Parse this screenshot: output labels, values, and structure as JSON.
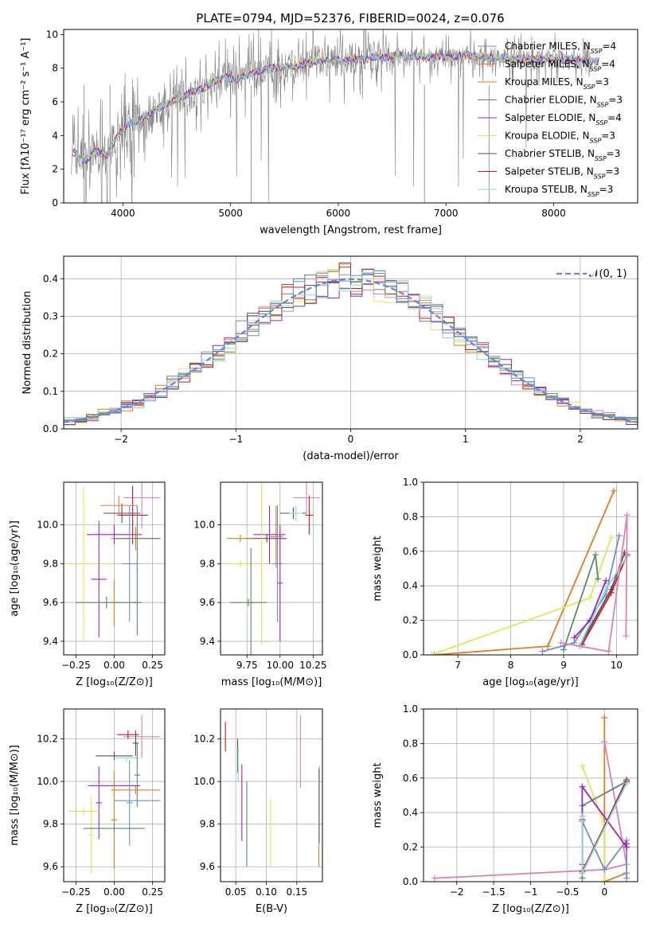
{
  "figure": {
    "title": "PLATE=0794, MJD=52376, FIBERID=0024, z=0.076"
  },
  "colors": {
    "Chabrier MILES": "#6b8fd6",
    "Salpeter MILES": "#e8784a",
    "Kroupa MILES": "#e07b1e",
    "Chabrier ELODIE": "#5a8a6a",
    "Salpeter ELODIE": "#a020c0",
    "Kroupa ELODIE": "#d8ea5a",
    "Chabrier STELIB": "#505050",
    "Salpeter STELIB": "#d01818",
    "Kroupa STELIB": "#80d8e0",
    "pink": "#e080b0",
    "data": "#808080",
    "normal": "#5b8ad6"
  },
  "chart_data": [
    {
      "id": "spectrum",
      "type": "line",
      "xlabel": "wavelength [Angstrom, rest frame]",
      "ylabel": "Flux [f_λ10^-17 erg cm^-2 s^-1 A^-1]",
      "xlim": [
        3450,
        8780
      ],
      "ylim": [
        0,
        10.3
      ],
      "xticks": [
        4000,
        5000,
        6000,
        7000,
        8000
      ],
      "yticks": [
        0,
        2,
        4,
        6,
        8,
        10
      ],
      "legend_position": "right",
      "legend": [
        {
          "label": "Chabrier MILES, N_SSP=4",
          "color": "#6b8fd6"
        },
        {
          "label": "Salpeter MILES, N_SSP=4",
          "color": "#e8784a"
        },
        {
          "label": "Kroupa MILES, N_SSP=3",
          "color": "#e07b1e"
        },
        {
          "label": "Chabrier ELODIE, N_SSP=3",
          "color": "#5a8a6a"
        },
        {
          "label": "Salpeter ELODIE, N_SSP=4",
          "color": "#a020c0"
        },
        {
          "label": "Kroupa ELODIE, N_SSP=3",
          "color": "#d8ea5a"
        },
        {
          "label": "Chabrier STELIB, N_SSP=3",
          "color": "#505050"
        },
        {
          "label": "Salpeter STELIB, N_SSP=3",
          "color": "#d01818"
        },
        {
          "label": "Kroupa STELIB, N_SSP=3",
          "color": "#80d8e0"
        }
      ],
      "model_x": [
        3550,
        3650,
        3750,
        3850,
        3950,
        4050,
        4150,
        4250,
        4350,
        4450,
        4550,
        4650,
        4750,
        4850,
        4950,
        5050,
        5150,
        5250,
        5350,
        5450,
        5550,
        5650,
        5750,
        5850,
        5950,
        6050,
        6150,
        6250,
        6350,
        6450,
        6550,
        6650,
        6750,
        6850,
        6950,
        7050,
        7150,
        7250,
        7350,
        7450,
        7550,
        7650,
        7750,
        7850,
        7950,
        8050,
        8150,
        8250,
        8350,
        8450
      ],
      "model_y": [
        3.0,
        2.5,
        3.1,
        2.8,
        4.0,
        4.7,
        4.9,
        5.3,
        5.7,
        6.0,
        6.3,
        6.6,
        6.8,
        7.2,
        7.5,
        7.3,
        7.6,
        7.8,
        8.0,
        8.0,
        8.1,
        8.2,
        8.3,
        8.5,
        8.5,
        8.4,
        8.6,
        8.5,
        8.7,
        8.6,
        8.8,
        8.6,
        8.7,
        8.6,
        8.7,
        8.6,
        8.8,
        8.7,
        8.7,
        8.6,
        8.6,
        8.5,
        8.6,
        8.5,
        8.6,
        8.5,
        8.5,
        8.5,
        8.4,
        8.4
      ]
    },
    {
      "id": "residuals",
      "type": "line",
      "xlabel": "(data-model)/error",
      "ylabel": "Normed distribution",
      "xlim": [
        -2.5,
        2.5
      ],
      "ylim": [
        0,
        0.46
      ],
      "xticks": [
        -2,
        -1,
        0,
        1,
        2
      ],
      "yticks": [
        0.0,
        0.1,
        0.2,
        0.3,
        0.4
      ],
      "legend_position": "upper right",
      "legend": [
        {
          "label": "𝒩(0, 1)"
        }
      ],
      "curve": "normal pdf, mean 0, sigma 1"
    },
    {
      "id": "age-vs-Z",
      "type": "scatter",
      "xlabel": "Z [log10(Z/Z⊙)]",
      "ylabel": "age  [log10(age/yr)]",
      "xlim": [
        -0.33,
        0.33
      ],
      "ylim": [
        9.33,
        10.22
      ],
      "xticks": [
        -0.25,
        0.0,
        0.25
      ],
      "ytick_values": [
        9.4,
        9.6,
        9.8,
        10.0
      ],
      "xtick_labels": [
        "−0.25",
        "0.00",
        "0.25"
      ],
      "ytick_labels": [
        "9.4",
        "9.6",
        "9.8",
        "10.0"
      ],
      "points": [
        {
          "x": 0.18,
          "y": 10.14,
          "xerr": 0.12,
          "yerr": 0.16,
          "color": "#e080b0"
        },
        {
          "x": 0.12,
          "y": 10.05,
          "xerr": 0.1,
          "yerr": 0.15,
          "color": "#d01818"
        },
        {
          "x": 0.05,
          "y": 10.06,
          "xerr": 0.12,
          "yerr": 0.05,
          "color": "#505050"
        },
        {
          "x": 0.14,
          "y": 9.93,
          "xerr": 0.16,
          "yerr": 0.06,
          "color": "#e07b1e"
        },
        {
          "x": 0.0,
          "y": 9.95,
          "xerr": 0.18,
          "yerr": 0.05,
          "color": "#a020c0"
        },
        {
          "x": 0.15,
          "y": 9.93,
          "xerr": 0.15,
          "yerr": 0.17,
          "color": "#5a8a6a"
        },
        {
          "x": 0.1,
          "y": 9.8,
          "xerr": 0.05,
          "yerr": 0.3,
          "color": "#6b8fd6"
        },
        {
          "x": 0.03,
          "y": 10.1,
          "xerr": 0.12,
          "yerr": 0.05,
          "color": "#e8784a"
        },
        {
          "x": -0.2,
          "y": 9.8,
          "xerr": 0.2,
          "yerr": 0.4,
          "color": "#d8ea5a"
        },
        {
          "x": -0.1,
          "y": 9.72,
          "xerr": 0.05,
          "yerr": 0.3,
          "color": "#a020c0"
        },
        {
          "x": 0.0,
          "y": 9.6,
          "xerr": 0.03,
          "yerr": 0.12,
          "color": "#e07b1e"
        },
        {
          "x": 0.15,
          "y": 9.6,
          "xerr": 0.03,
          "yerr": 0.17,
          "color": "#5a8a6a"
        },
        {
          "x": -0.05,
          "y": 9.6,
          "xerr": 0.2,
          "yerr": 0.03,
          "color": "#5a8a6a"
        }
      ]
    },
    {
      "id": "age-vs-mass",
      "type": "scatter",
      "xlabel": "mass [log10(M/M⊙)]",
      "xlim": [
        9.55,
        10.32
      ],
      "ylim": [
        9.33,
        10.22
      ],
      "xticks": [
        9.75,
        10.0,
        10.25
      ],
      "ytick_values": [
        9.4,
        9.6,
        9.8,
        10.0
      ],
      "xtick_labels": [
        "9.75",
        "10.00",
        "10.25"
      ],
      "ytick_labels": [
        "9.4",
        "9.6",
        "9.8",
        "10.0"
      ],
      "points": [
        {
          "x": 10.2,
          "y": 10.14,
          "xerr": 0.1,
          "yerr": 0.08,
          "color": "#e080b0"
        },
        {
          "x": 10.22,
          "y": 10.05,
          "xerr": 0.03,
          "yerr": 0.1,
          "color": "#d01818"
        },
        {
          "x": 10.1,
          "y": 10.06,
          "xerr": 0.1,
          "yerr": 0.03,
          "color": "#505050"
        },
        {
          "x": 10.12,
          "y": 10.06,
          "xerr": 0.05,
          "yerr": 0.04,
          "color": "#80d8e0"
        },
        {
          "x": 9.97,
          "y": 9.94,
          "xerr": 0.05,
          "yerr": 0.16,
          "color": "#e07b1e"
        },
        {
          "x": 9.9,
          "y": 9.93,
          "xerr": 0.15,
          "yerr": 0.02,
          "color": "#505050"
        },
        {
          "x": 9.92,
          "y": 9.95,
          "xerr": 0.12,
          "yerr": 0.15,
          "color": "#a020c0"
        },
        {
          "x": 9.98,
          "y": 9.8,
          "xerr": 0.04,
          "yerr": 0.3,
          "color": "#6b8fd6"
        },
        {
          "x": 9.7,
          "y": 9.93,
          "xerr": 0.1,
          "yerr": 0.02,
          "color": "#e07b1e"
        },
        {
          "x": 9.7,
          "y": 9.8,
          "xerr": 0.12,
          "yerr": 0.02,
          "color": "#d8ea5a"
        },
        {
          "x": 9.86,
          "y": 9.8,
          "xerr": 0.02,
          "yerr": 0.42,
          "color": "#d8ea5a"
        },
        {
          "x": 9.78,
          "y": 9.6,
          "xerr": 0.02,
          "yerr": 0.28,
          "color": "#5a8a6a"
        },
        {
          "x": 9.76,
          "y": 9.6,
          "xerr": 0.14,
          "yerr": 0.02,
          "color": "#5a8a6a"
        },
        {
          "x": 10.0,
          "y": 9.7,
          "xerr": 0.02,
          "yerr": 0.3,
          "color": "#a020c0"
        }
      ]
    },
    {
      "id": "mass-weight-vs-age",
      "type": "line",
      "xlabel": "age  [log10(age/yr)]",
      "ylabel": "mass weight",
      "xlim": [
        6.35,
        10.4
      ],
      "ylim": [
        0,
        1.0
      ],
      "xticks": [
        7,
        8,
        9,
        10
      ],
      "yticks": [
        0.0,
        0.2,
        0.4,
        0.6,
        0.8,
        1.0
      ],
      "series": [
        {
          "color": "#e07b1e",
          "x": [
            6.55,
            8.7,
            9.95
          ],
          "y": [
            0.0,
            0.05,
            0.95
          ]
        },
        {
          "color": "#d8ea5a",
          "x": [
            6.5,
            9.5,
            9.9
          ],
          "y": [
            0.0,
            0.33,
            0.68
          ]
        },
        {
          "color": "#6b8fd6",
          "x": [
            8.6,
            9.2,
            9.8,
            10.05
          ],
          "y": [
            0.02,
            0.07,
            0.35,
            0.69
          ]
        },
        {
          "color": "#5a8a6a",
          "x": [
            9.0,
            9.6,
            9.65
          ],
          "y": [
            0.03,
            0.58,
            0.44
          ]
        },
        {
          "color": "#a020c0",
          "x": [
            9.2,
            9.5,
            9.8
          ],
          "y": [
            0.1,
            0.2,
            0.43
          ]
        },
        {
          "color": "#505050",
          "x": [
            9.3,
            9.9,
            10.15
          ],
          "y": [
            0.05,
            0.38,
            0.59
          ]
        },
        {
          "color": "#d01818",
          "x": [
            9.35,
            9.9,
            10.2
          ],
          "y": [
            0.06,
            0.36,
            0.58
          ]
        },
        {
          "color": "#80d8e0",
          "x": [
            9.3,
            9.8,
            10.2
          ],
          "y": [
            0.05,
            0.38,
            0.57
          ]
        },
        {
          "color": "#e080b0",
          "x": [
            8.95,
            9.85,
            10.2,
            10.18
          ],
          "y": [
            0.07,
            0.02,
            0.81,
            0.11
          ]
        }
      ]
    },
    {
      "id": "mass-vs-Z",
      "type": "scatter",
      "xlabel": "Z [log10(Z/Z⊙)]",
      "ylabel": "mass [log10(M/M⊙)]",
      "xlim": [
        -0.33,
        0.33
      ],
      "ylim": [
        9.53,
        10.34
      ],
      "xticks": [
        -0.25,
        0.0,
        0.25
      ],
      "ytick_values": [
        9.6,
        9.8,
        10.0,
        10.2
      ],
      "xtick_labels": [
        "−0.25",
        "0.00",
        "0.25"
      ],
      "ytick_labels": [
        "9.6",
        "9.8",
        "10.0",
        "10.2"
      ],
      "points": [
        {
          "x": 0.18,
          "y": 10.21,
          "xerr": 0.12,
          "yerr": 0.1,
          "color": "#e080b0"
        },
        {
          "x": 0.09,
          "y": 10.22,
          "xerr": 0.07,
          "yerr": 0.02,
          "color": "#d01818"
        },
        {
          "x": 0.14,
          "y": 10.18,
          "xerr": 0.02,
          "yerr": 0.06,
          "color": "#505050"
        },
        {
          "x": 0.0,
          "y": 10.12,
          "xerr": 0.12,
          "yerr": 0.02,
          "color": "#505050"
        },
        {
          "x": 0.08,
          "y": 10.11,
          "xerr": 0.08,
          "yerr": 0.02,
          "color": "#80d8e0"
        },
        {
          "x": 0.15,
          "y": 10.03,
          "xerr": 0.02,
          "yerr": 0.15,
          "color": "#5a8a6a"
        },
        {
          "x": 0.14,
          "y": 9.96,
          "xerr": 0.16,
          "yerr": 0.02,
          "color": "#e07b1e"
        },
        {
          "x": 0.0,
          "y": 9.98,
          "xerr": 0.17,
          "yerr": 0.02,
          "color": "#a020c0"
        },
        {
          "x": 0.15,
          "y": 9.91,
          "xerr": 0.15,
          "yerr": 0.02,
          "color": "#6b8fd6"
        },
        {
          "x": 0.1,
          "y": 9.9,
          "xerr": 0.02,
          "yerr": 0.2,
          "color": "#6b8fd6"
        },
        {
          "x": -0.1,
          "y": 9.9,
          "xerr": 0.02,
          "yerr": 0.17,
          "color": "#a020c0"
        },
        {
          "x": 0.0,
          "y": 9.82,
          "xerr": 0.02,
          "yerr": 0.23,
          "color": "#e07b1e"
        },
        {
          "x": -0.2,
          "y": 9.86,
          "xerr": 0.1,
          "yerr": 0.02,
          "color": "#d8ea5a"
        },
        {
          "x": -0.15,
          "y": 9.75,
          "xerr": 0.02,
          "yerr": 0.18,
          "color": "#d8ea5a"
        },
        {
          "x": 0.0,
          "y": 9.78,
          "xerr": 0.2,
          "yerr": 0.02,
          "color": "#5a8a6a"
        }
      ]
    },
    {
      "id": "mass-vs-EBV",
      "type": "scatter",
      "xlabel": "E(B-V)",
      "xlim": [
        0.025,
        0.192
      ],
      "ylim": [
        9.53,
        10.34
      ],
      "xticks": [
        0.05,
        0.1,
        0.15
      ],
      "ytick_values": [
        9.6,
        9.8,
        10.0,
        10.2
      ],
      "xtick_labels": [
        "0.05",
        "0.10",
        "0.15"
      ],
      "ytick_labels": [
        "9.6",
        "9.8",
        "10.0",
        "10.2"
      ],
      "points": [
        {
          "x": 0.033,
          "y": 10.21,
          "xerr": 0.0,
          "yerr": 0.07,
          "color": "#d01818"
        },
        {
          "x": 0.053,
          "y": 10.12,
          "xerr": 0.0,
          "yerr": 0.08,
          "color": "#505050"
        },
        {
          "x": 0.054,
          "y": 10.08,
          "xerr": 0.0,
          "yerr": 0.08,
          "color": "#80d8e0"
        },
        {
          "x": 0.06,
          "y": 9.9,
          "xerr": 0.0,
          "yerr": 0.18,
          "color": "#a020c0"
        },
        {
          "x": 0.068,
          "y": 9.8,
          "xerr": 0.0,
          "yerr": 0.2,
          "color": "#5a8a6a"
        },
        {
          "x": 0.107,
          "y": 9.76,
          "xerr": 0.0,
          "yerr": 0.16,
          "color": "#d8ea5a"
        },
        {
          "x": 0.156,
          "y": 10.14,
          "xerr": 0.0,
          "yerr": 0.17,
          "color": "#e080b0"
        },
        {
          "x": 0.186,
          "y": 9.83,
          "xerr": 0.0,
          "yerr": 0.23,
          "color": "#e07b1e"
        },
        {
          "x": 0.187,
          "y": 9.89,
          "xerr": 0.0,
          "yerr": 0.18,
          "color": "#6b8fd6"
        }
      ]
    },
    {
      "id": "mass-weight-vs-Z",
      "type": "line",
      "xlabel": "Z [log10(Z/Z⊙)]",
      "ylabel": "mass weight",
      "xlim": [
        -2.45,
        0.45
      ],
      "ylim": [
        0,
        1.0
      ],
      "xticks": [
        -2.0,
        -1.5,
        -1.0,
        -0.5,
        0.0
      ],
      "yticks": [
        0.0,
        0.2,
        0.4,
        0.6,
        0.8,
        1.0
      ],
      "series": [
        {
          "color": "#e07b1e",
          "x": [
            0.0,
            0.0,
            0.0,
            0.3
          ],
          "y": [
            0.0,
            0.95,
            0.0,
            0.05
          ]
        },
        {
          "color": "#e080b0",
          "x": [
            -2.3,
            0.0,
            0.3,
            0.0
          ],
          "y": [
            0.02,
            0.07,
            0.1,
            0.81
          ]
        },
        {
          "color": "#d8ea5a",
          "x": [
            -0.3,
            0.0,
            0.0
          ],
          "y": [
            0.67,
            0.33,
            0.0
          ]
        },
        {
          "color": "#6b8fd6",
          "x": [
            -0.3,
            0.0,
            0.3,
            0.3
          ],
          "y": [
            0.35,
            0.07,
            0.24,
            0.02
          ]
        },
        {
          "color": "#5a8a6a",
          "x": [
            -0.3,
            -0.3,
            0.3
          ],
          "y": [
            0.02,
            0.44,
            0.58
          ]
        },
        {
          "color": "#a020c0",
          "x": [
            -0.3,
            -0.3,
            0.3,
            0.3
          ],
          "y": [
            0.1,
            0.55,
            0.2,
            0.22
          ]
        },
        {
          "color": "#505050",
          "x": [
            -0.3,
            -0.3,
            0.3
          ],
          "y": [
            0.38,
            0.05,
            0.59
          ]
        },
        {
          "color": "#d01818",
          "x": [
            -0.3,
            -0.3,
            0.3
          ],
          "y": [
            0.36,
            0.06,
            0.58
          ]
        },
        {
          "color": "#80d8e0",
          "x": [
            -0.3,
            -0.3,
            0.3
          ],
          "y": [
            0.38,
            0.05,
            0.57
          ]
        }
      ]
    }
  ]
}
